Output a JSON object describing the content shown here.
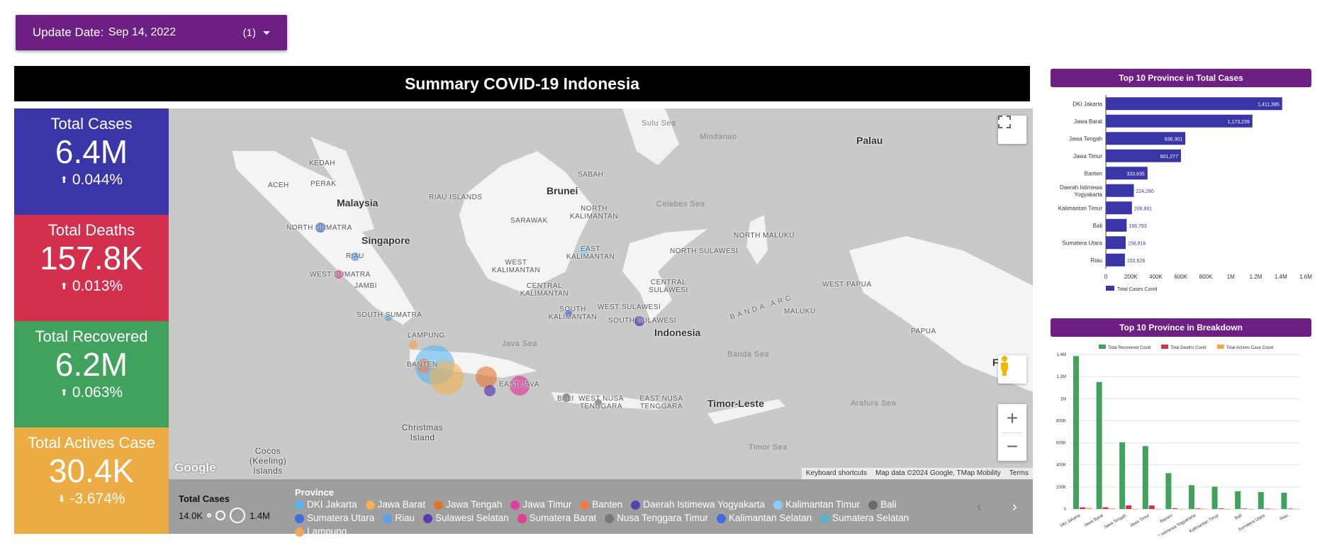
{
  "filter": {
    "label": "Update Date",
    "value": "Sep 14, 2022",
    "count": "(1)"
  },
  "title": "Summary COVID-19 Indonesia",
  "kpis": [
    {
      "label": "Total Cases",
      "value": "6.4M",
      "delta": "0.044%",
      "direction": "up",
      "color": "#3b36a8"
    },
    {
      "label": "Total Deaths",
      "value": "157.8K",
      "delta": "0.013%",
      "direction": "up",
      "color": "#d3304e"
    },
    {
      "label": "Total Recovered",
      "value": "6.2M",
      "delta": "0.063%",
      "direction": "up",
      "color": "#41a25d"
    },
    {
      "label": "Total Actives Case",
      "value": "30.4K",
      "delta": "-3.674%",
      "direction": "down",
      "color": "#ecab43"
    }
  ],
  "map": {
    "labels": {
      "countries": [
        "Malaysia",
        "Singapore",
        "Brunei",
        "Indonesia",
        "Timor-Leste",
        "Palau"
      ],
      "regions": [
        "ACEH",
        "KEDAH",
        "PERAK",
        "NORTH SUMATRA",
        "RIAU ISLANDS",
        "RIAU",
        "WEST SUMATRA",
        "JAMBI",
        "SOUTH SUMATRA",
        "LAMPUNG",
        "BANTEN",
        "EAST JAVA",
        "BALI",
        "WEST NUSA TENGGARA",
        "EAST NUSA TENGGARA",
        "SABAH",
        "SARAWAK",
        "NORTH KALIMANTAN",
        "EAST KALIMANTAN",
        "WEST KALIMANTAN",
        "CENTRAL KALIMANTAN",
        "SOUTH KALIMANTAN",
        "NORTH SULAWESI",
        "CENTRAL SULAWESI",
        "WEST SULAWESI",
        "SOUTH SULAWESI",
        "NORTH MALUKU",
        "MALUKU",
        "WEST PAPUA",
        "PAPUA",
        "BANDA ARC",
        "Christmas Island",
        "Cocos (Keeling) Islands"
      ],
      "seas": [
        "Sulu Sea",
        "Mindanao",
        "Celebes Sea",
        "Java Sea",
        "Banda Sea",
        "Arafura Sea",
        "Timor Sea"
      ]
    },
    "footer": {
      "shortcuts": "Keyboard shortcuts",
      "attribution": "Map data ©2024 Google, TMap Mobility",
      "terms": "Terms"
    },
    "brand": "Google",
    "partial_label": "F N e"
  },
  "legend": {
    "size_title": "Total Cases",
    "size_min": "14.0K",
    "size_max": "1.4M",
    "province_title": "Province",
    "items": [
      {
        "name": "DKI Jakarta",
        "color": "#5ab4f0"
      },
      {
        "name": "Jawa Barat",
        "color": "#f4b050"
      },
      {
        "name": "Jawa Tengah",
        "color": "#e2732a"
      },
      {
        "name": "Jawa Timur",
        "color": "#e040a0"
      },
      {
        "name": "Banten",
        "color": "#f07a4a"
      },
      {
        "name": "Daerah Istimewa Yogyakarta",
        "color": "#5c3fb0"
      },
      {
        "name": "Kalimantan Timur",
        "color": "#8ecaf6"
      },
      {
        "name": "Bali",
        "color": "#6b6b6b"
      },
      {
        "name": "Sumatera Utara",
        "color": "#3c6ee0"
      },
      {
        "name": "Riau",
        "color": "#5aa0ea"
      },
      {
        "name": "Sulawesi Selatan",
        "color": "#5a3ab0"
      },
      {
        "name": "Sumatera Barat",
        "color": "#e03f90"
      },
      {
        "name": "Nusa Tenggara Timur",
        "color": "#777777"
      },
      {
        "name": "Kalimantan Selatan",
        "color": "#3f6de0"
      },
      {
        "name": "Sumatera Selatan",
        "color": "#5ab0c8"
      },
      {
        "name": "Lampung",
        "color": "#f0a860"
      }
    ]
  },
  "chart_data": [
    {
      "type": "bar",
      "orientation": "horizontal",
      "title": "Top 10 Province in Total Cases",
      "categories": [
        "DKI Jakarta",
        "Jawa Barat",
        "Jawa Tengah",
        "Jawa Timur",
        "Banten",
        "Daerah Istimewa Yogyakarta",
        "Kalimantan Timur",
        "Bali",
        "Sumatera Utara",
        "Riau"
      ],
      "values": [
        1411395,
        1173239,
        636301,
        601277,
        333635,
        224280,
        208991,
        166793,
        158816,
        152629
      ],
      "data_labels": [
        "1,411,395",
        "1,173,239",
        "636,301",
        "601,277",
        "333,635",
        "224,280",
        "208,991",
        "166,793",
        "158,816",
        "152,629"
      ],
      "xlim": [
        0,
        1600000
      ],
      "xticks": [
        "0",
        "200K",
        "400K",
        "600K",
        "800K",
        "1M",
        "1.2M",
        "1.4M",
        "1.6M"
      ],
      "legend": "Total Cases Covid",
      "color": "#3b36a8"
    },
    {
      "type": "bar",
      "title": "Top 10 Province in Breakdown",
      "categories": [
        "DKI Jakarta",
        "Jawa Barat",
        "Jawa Tengah",
        "Jawa Timur",
        "Banten",
        "Daerah Istimewa Yogyakarta",
        "Kalimantan Timur",
        "Bali",
        "Sumatera Utara",
        "Riau"
      ],
      "series": [
        {
          "name": "Total Recovered Covid",
          "color": "#41a25d",
          "values": [
            1385000,
            1150000,
            605000,
            570000,
            325000,
            216000,
            203000,
            161000,
            154000,
            148000
          ]
        },
        {
          "name": "Total Deaths Covid",
          "color": "#d3304e",
          "values": [
            15800,
            16000,
            33000,
            32000,
            7500,
            6000,
            5800,
            4800,
            3500,
            4000
          ]
        },
        {
          "name": "Total Actives Case Covid",
          "color": "#ecab43",
          "values": [
            10000,
            7000,
            1500,
            1000,
            1000,
            2000,
            500,
            500,
            1000,
            500
          ]
        }
      ],
      "ylim": [
        0,
        1400000
      ],
      "yticks": [
        "0",
        "200K",
        "400K",
        "600K",
        "800K",
        "1M",
        "1.2M",
        "1.4M"
      ]
    }
  ]
}
